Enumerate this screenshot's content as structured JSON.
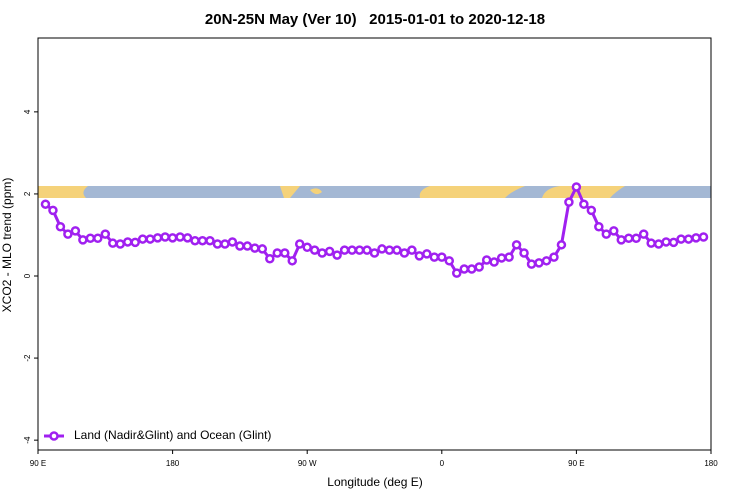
{
  "chart_data": {
    "type": "line",
    "title": "20N-25N May (Ver 10)   2015-01-01 to 2020-12-18",
    "xlabel": "Longitude (deg E)",
    "ylabel": "XCO2 - MLO trend (ppm)",
    "xlim": [
      90,
      540
    ],
    "xticks": [
      {
        "value": 90,
        "label": "90 E"
      },
      {
        "value": 180,
        "label": "180"
      },
      {
        "value": 270,
        "label": "90 W"
      },
      {
        "value": 360,
        "label": "0"
      },
      {
        "value": 450,
        "label": "90 E"
      },
      {
        "value": 540,
        "label": "180"
      }
    ],
    "ylim": [
      -4.24,
      5.8
    ],
    "yticks": [
      -4,
      -2,
      0,
      2,
      4
    ],
    "grid": false,
    "legend": "bottom-left",
    "x": [
      95,
      100,
      105,
      110,
      115,
      120,
      125,
      130,
      135,
      140,
      145,
      150,
      155,
      160,
      165,
      170,
      175,
      180,
      185,
      190,
      195,
      200,
      205,
      210,
      215,
      220,
      225,
      230,
      235,
      240,
      245,
      250,
      255,
      260,
      265,
      270,
      275,
      280,
      285,
      290,
      295,
      300,
      305,
      310,
      315,
      320,
      325,
      330,
      335,
      340,
      345,
      350,
      355,
      360,
      365,
      370,
      375,
      380,
      385,
      390,
      395,
      400,
      405,
      410,
      415,
      420,
      425,
      430,
      435,
      440,
      445,
      450,
      455,
      460,
      465,
      470,
      475,
      480,
      485,
      490,
      495,
      500,
      505,
      510,
      515,
      520,
      525,
      530,
      535
    ],
    "series": [
      {
        "name": "Land (Nadir&Glint) and Ocean (Glint)",
        "color": "#a020f0",
        "values": [
          1.75,
          1.6,
          1.2,
          1.02,
          1.1,
          0.88,
          0.92,
          0.92,
          1.02,
          0.8,
          0.78,
          0.83,
          0.82,
          0.9,
          0.9,
          0.93,
          0.95,
          0.93,
          0.95,
          0.93,
          0.86,
          0.86,
          0.86,
          0.78,
          0.78,
          0.83,
          0.73,
          0.73,
          0.68,
          0.66,
          0.42,
          0.56,
          0.56,
          0.37,
          0.78,
          0.7,
          0.63,
          0.56,
          0.6,
          0.51,
          0.63,
          0.63,
          0.63,
          0.63,
          0.56,
          0.66,
          0.63,
          0.63,
          0.56,
          0.63,
          0.49,
          0.54,
          0.46,
          0.46,
          0.37,
          0.07,
          0.17,
          0.17,
          0.22,
          0.39,
          0.34,
          0.44,
          0.46,
          0.76,
          0.56,
          0.29,
          0.32,
          0.37,
          0.46,
          0.76,
          1.8,
          2.17,
          1.75,
          1.6,
          1.2,
          1.02,
          1.1,
          0.88,
          0.92,
          0.92,
          1.02,
          0.8,
          0.78,
          0.83,
          0.82,
          0.9,
          0.9,
          0.93,
          0.95
        ]
      }
    ]
  }
}
